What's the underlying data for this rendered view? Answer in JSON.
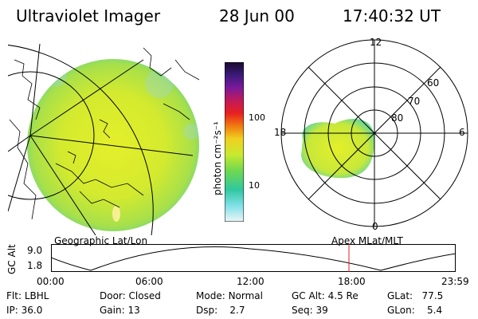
{
  "header": {
    "instrument": "Ultraviolet Imager",
    "date": "28 Jun 00",
    "time": "17:40:32 UT"
  },
  "colorbar": {
    "unit_label": "photon cm⁻²s⁻¹",
    "ticks": [
      "100",
      "10"
    ]
  },
  "polar": {
    "mlt_labels": [
      "12",
      "18",
      "6",
      "0"
    ],
    "lat_labels": [
      "60",
      "70",
      "80"
    ]
  },
  "coords": {
    "left": "Geographic Lat/Lon",
    "right": "Apex MLat/MLT"
  },
  "altitude_plot": {
    "axis_label": "GC Alt",
    "y_ticks": [
      "9.0",
      "1.8"
    ],
    "x_ticks": [
      "00:00",
      "06:00",
      "12:00",
      "18:00",
      "23:59"
    ],
    "current_time_marker": "17:40:32"
  },
  "info": {
    "flt_label": "Flt:",
    "flt_value": "LBHL",
    "ip_label": "IP:",
    "ip_value": "36.0",
    "door_label": "Door:",
    "door_value": "Closed",
    "gain_label": "Gain:",
    "gain_value": "13",
    "mode_label": "Mode:",
    "mode_value": "Normal",
    "dsp_label": "Dsp:",
    "dsp_value": "2.7",
    "gcalt_label": "GC Alt:",
    "gcalt_value": "4.5 Re",
    "seq_label": "Seq:",
    "seq_value": "39",
    "glat_label": "GLat:",
    "glat_value": "77.5",
    "glon_label": "GLon:",
    "glon_value": "5.4"
  }
}
